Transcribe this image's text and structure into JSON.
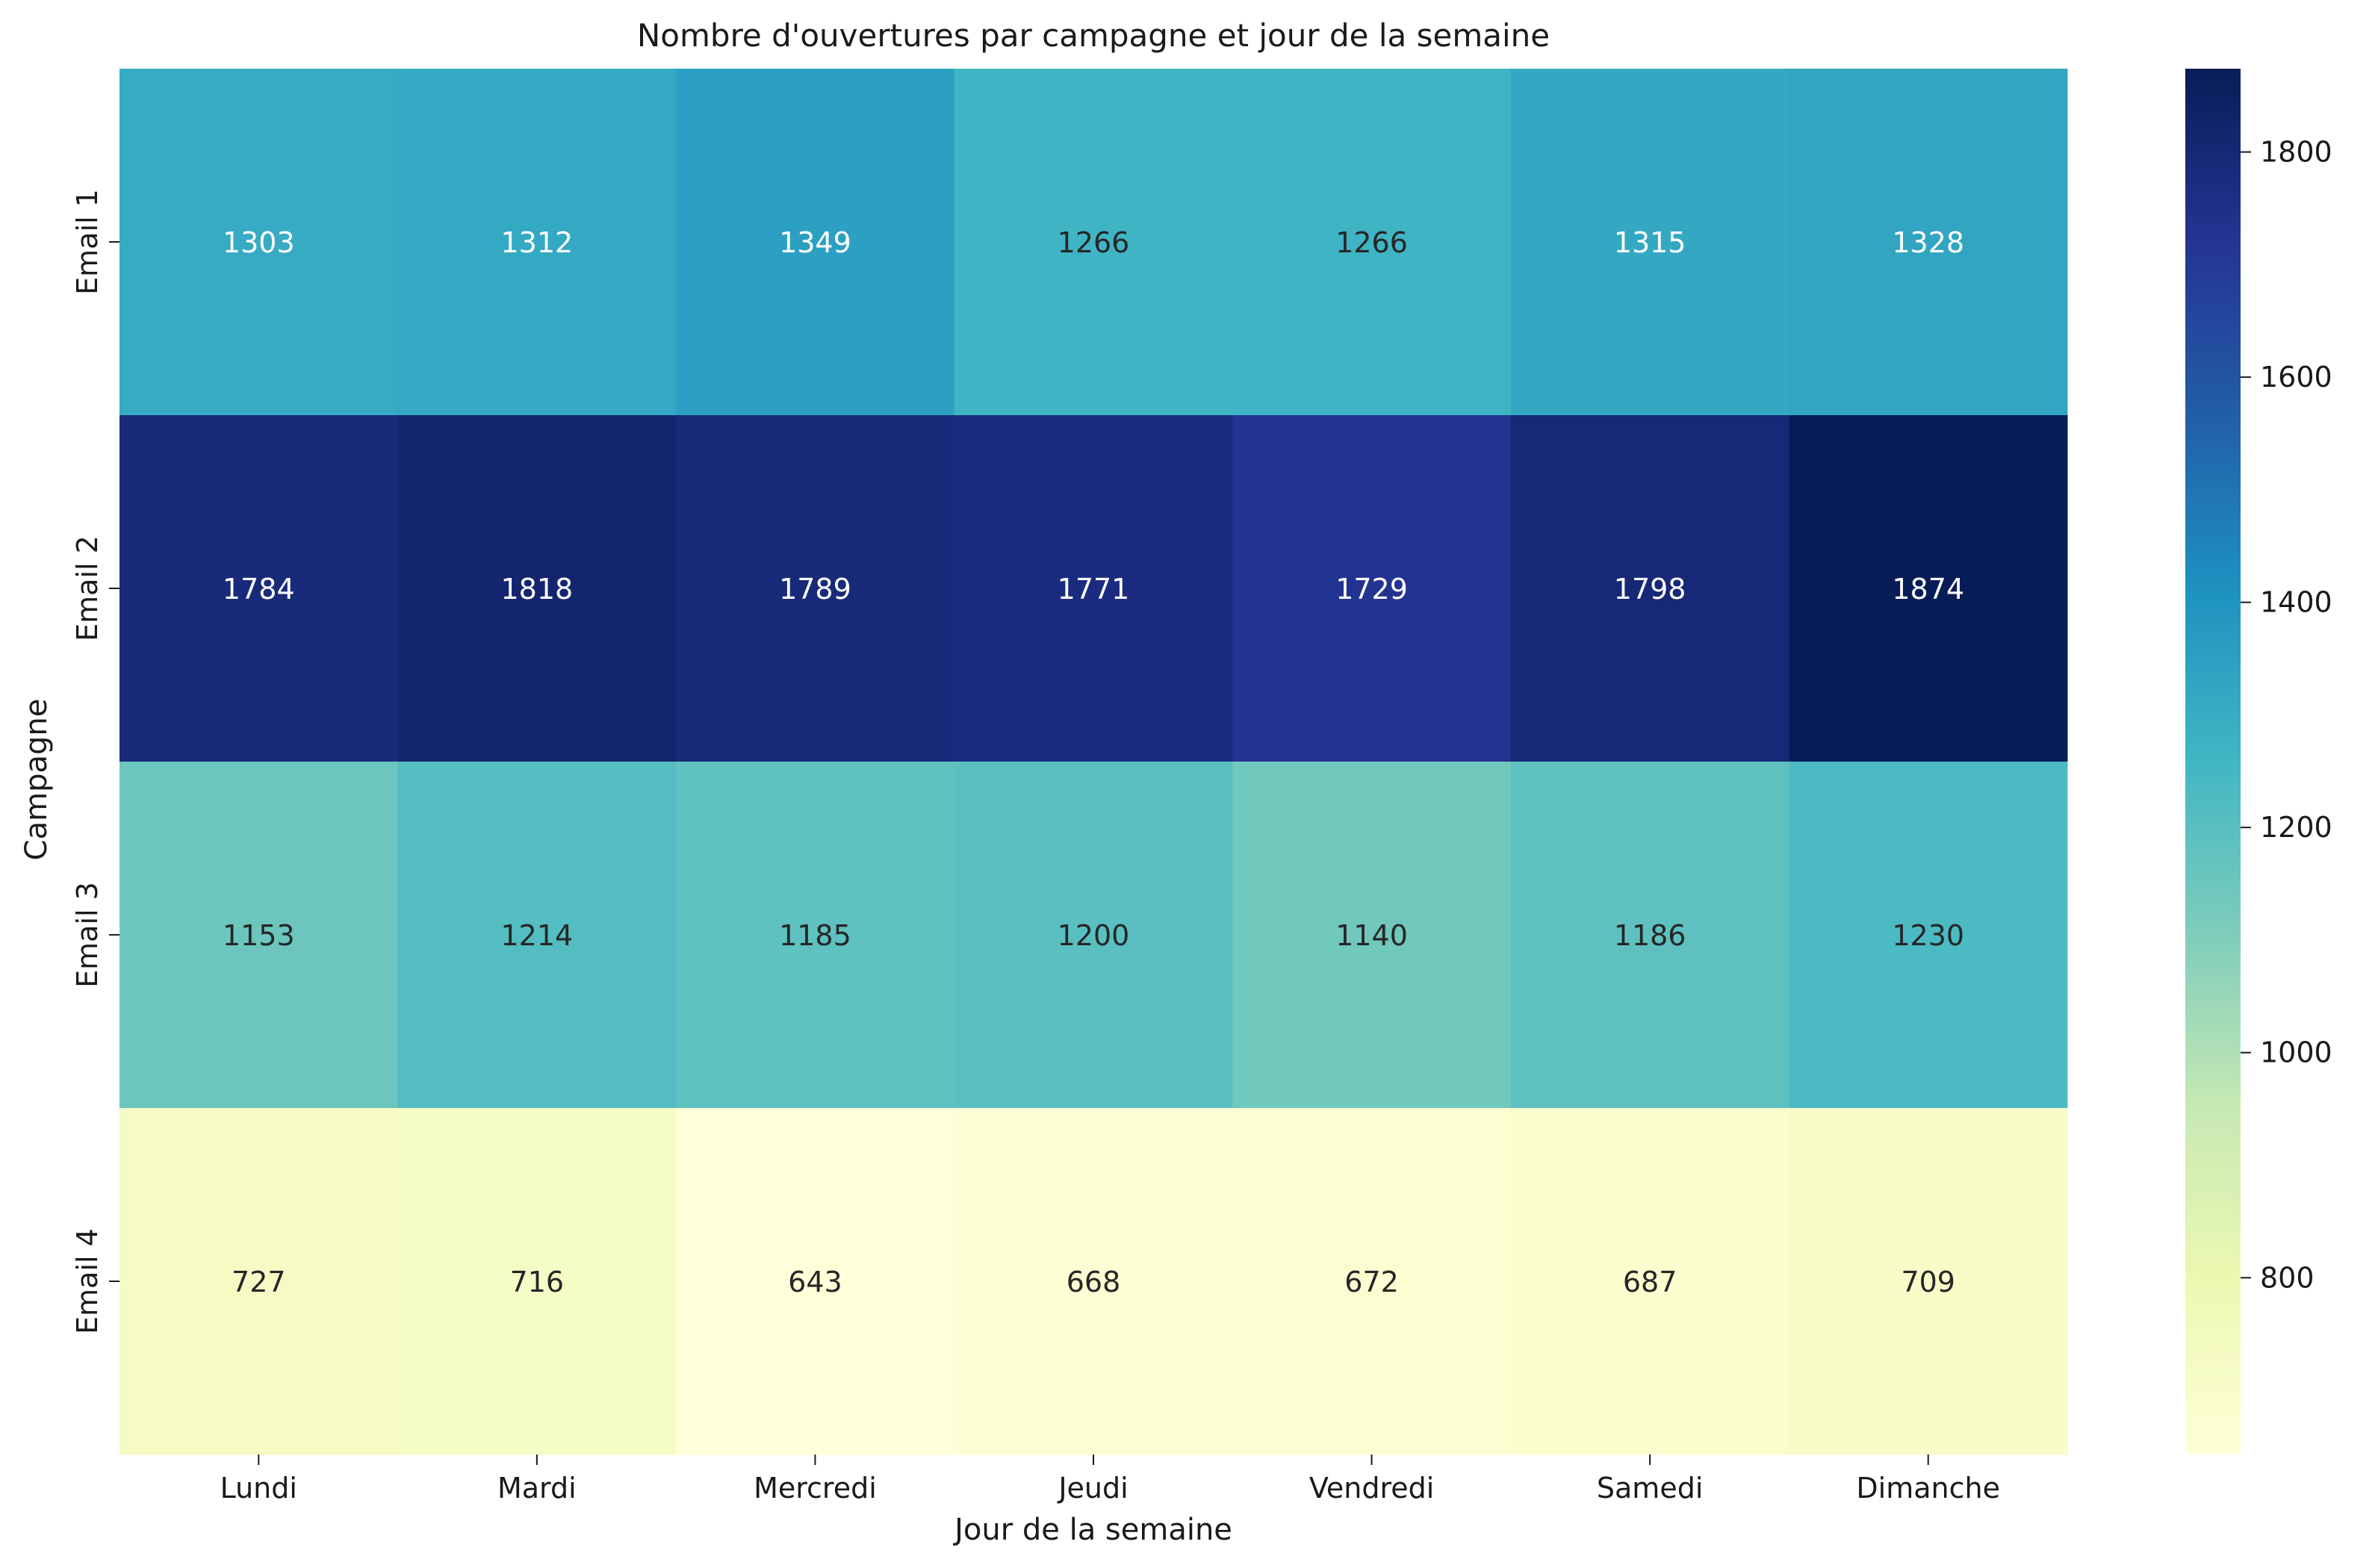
{
  "chart_data": {
    "type": "heatmap",
    "title": "Nombre d'ouvertures par campagne et jour de la semaine",
    "xlabel": "Jour de la semaine",
    "ylabel": "Campagne",
    "x_categories": [
      "Lundi",
      "Mardi",
      "Mercredi",
      "Jeudi",
      "Vendredi",
      "Samedi",
      "Dimanche"
    ],
    "y_categories": [
      "Email 1",
      "Email 2",
      "Email 3",
      "Email 4"
    ],
    "values": [
      [
        1303,
        1312,
        1349,
        1266,
        1266,
        1315,
        1328
      ],
      [
        1784,
        1818,
        1789,
        1771,
        1729,
        1798,
        1874
      ],
      [
        1153,
        1214,
        1185,
        1200,
        1140,
        1186,
        1230
      ],
      [
        727,
        716,
        643,
        668,
        672,
        687,
        709
      ]
    ],
    "colorbar": {
      "range": [
        643,
        1874
      ],
      "ticks": [
        800,
        1000,
        1200,
        1400,
        1600,
        1800
      ],
      "colormap": "YlGnBu"
    },
    "grid": false,
    "legend": "colorbar-right"
  }
}
